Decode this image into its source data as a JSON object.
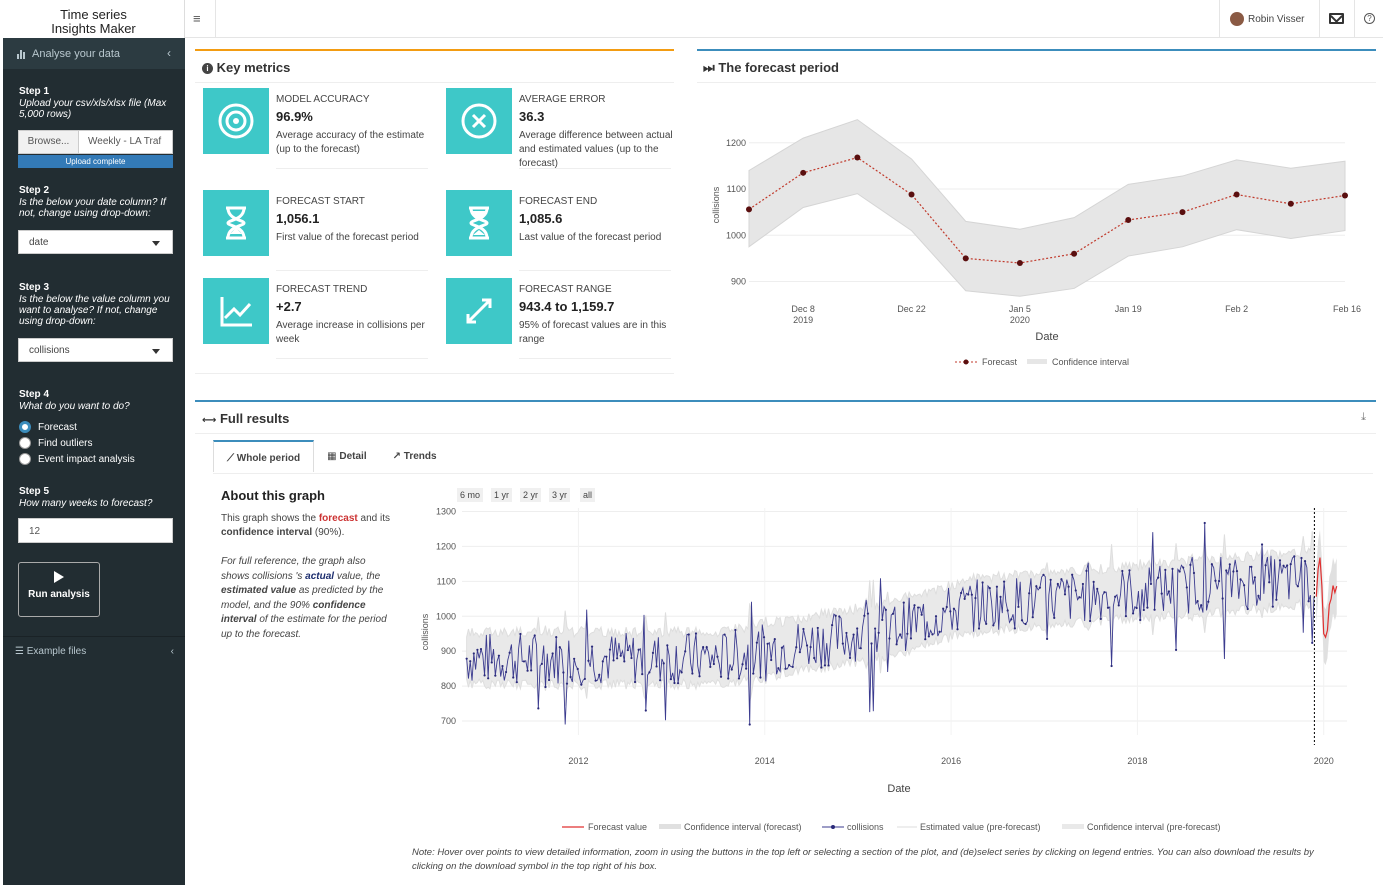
{
  "app": {
    "title_line1": "Time series",
    "title_line2": "Insights Maker"
  },
  "sidebar": {
    "menu_label": "Analyse your data",
    "step1": {
      "title": "Step 1",
      "text": "Upload your csv/xls/xlsx file (Max 5,000 rows)",
      "browse": "Browse...",
      "filename": "Weekly - LA Traf",
      "progress": "Upload complete"
    },
    "step2": {
      "title": "Step 2",
      "text": "Is the below your date column? If not, change using drop-down:",
      "value": "date"
    },
    "step3": {
      "title": "Step 3",
      "text": "Is the below the value column you want to analyse? If not, change using drop-down:",
      "value": "collisions"
    },
    "step4": {
      "title": "Step 4",
      "text": "What do you want to do?",
      "options": [
        "Forecast",
        "Find outliers",
        "Event impact analysis"
      ],
      "selected": "Forecast"
    },
    "step5": {
      "title": "Step 5",
      "text": "How many weeks to forecast?",
      "value": "12"
    },
    "run_label": "Run analysis",
    "examples_label": "Example files"
  },
  "header": {
    "user": "Robin Visser"
  },
  "key_metrics": {
    "title": "Key metrics",
    "items": [
      {
        "label": "MODEL ACCURACY",
        "value": "96.9%",
        "desc": "Average accuracy of the estimate (up to the forecast)",
        "icon": "target-icon"
      },
      {
        "label": "AVERAGE ERROR",
        "value": "36.3",
        "desc": "Average difference between actual and estimated values (up to the forecast)",
        "icon": "x-circle-icon"
      },
      {
        "label": "FORECAST START",
        "value": "1,056.1",
        "desc": "First value of the forecast period",
        "icon": "hourglass-start-icon"
      },
      {
        "label": "FORECAST END",
        "value": "1,085.6",
        "desc": "Last value of the forecast period",
        "icon": "hourglass-end-icon"
      },
      {
        "label": "FORECAST TREND",
        "value": "+2.7",
        "desc": "Average increase in collisions per week",
        "icon": "trend-chart-icon"
      },
      {
        "label": "FORECAST RANGE",
        "value": "943.4 to 1,159.7",
        "desc": "95% of forecast values are in this range",
        "icon": "expand-arrows-icon"
      }
    ]
  },
  "forecast_box": {
    "title": "The forecast period",
    "ylabel": "collisions",
    "xlabel": "Date",
    "x_ticks": [
      [
        "Dec 8",
        "2019"
      ],
      [
        "Dec 22",
        ""
      ],
      [
        "Jan 5",
        "2020"
      ],
      [
        "Jan 19",
        ""
      ],
      [
        "Feb 2",
        ""
      ],
      [
        "Feb 16",
        ""
      ]
    ],
    "y_ticks": [
      "900",
      "1000",
      "1100",
      "1200"
    ],
    "legend": [
      "Forecast",
      "Confidence interval"
    ]
  },
  "full_results": {
    "title": "Full results",
    "tabs": [
      "Whole period",
      "Detail",
      "Trends"
    ],
    "about_title": "About this graph",
    "about_p1_a": "This graph shows the ",
    "about_p1_b": "forecast",
    "about_p1_c": " and its ",
    "about_p1_d": "confidence interval",
    "about_p1_e": " (90%).",
    "about_p2_a": "For full reference, the graph also shows collisions 's ",
    "about_p2_b": "actual",
    "about_p2_c": " value, the ",
    "about_p2_d": "estimated value",
    "about_p2_e": " as predicted by the model, and the 90% ",
    "about_p2_f": "confidence interval",
    "about_p2_g": " of the estimate for the period up to the forecast.",
    "range_buttons": [
      "6 mo",
      "1 yr",
      "2 yr",
      "3 yr",
      "all"
    ],
    "ylabel": "collisions",
    "xlabel": "Date",
    "y_ticks": [
      "700",
      "800",
      "900",
      "1000",
      "1100",
      "1200",
      "1300"
    ],
    "x_ticks": [
      "2012",
      "2014",
      "2016",
      "2018",
      "2020"
    ],
    "legend": [
      "Forecast value",
      "Confidence interval (forecast)",
      "collisions",
      "Estimated value (pre-forecast)",
      "Confidence interval (pre-forecast)"
    ],
    "note": "Note: Hover over points to view detailed information, zoom in using the buttons in the top left or selecting a section of the plot, and (de)select series by clicking on legend entries. You can also download the results by clicking on the download symbol in the top right of his box."
  },
  "colors": {
    "teal": "#3ec8c8",
    "forecast_red": "#c0392b",
    "series_blue": "#3b3b8f",
    "sidebar_bg": "#222d32",
    "accent": "#3c8dbc",
    "metrics_border": "#f39c12"
  },
  "chart_data": [
    {
      "type": "line",
      "title": "The forecast period",
      "xlabel": "Date",
      "ylabel": "collisions",
      "x": [
        "2019-12-01",
        "2019-12-08",
        "2019-12-15",
        "2019-12-22",
        "2019-12-29",
        "2020-01-05",
        "2020-01-12",
        "2020-01-19",
        "2020-01-26",
        "2020-02-02",
        "2020-02-09",
        "2020-02-16"
      ],
      "series": [
        {
          "name": "Forecast",
          "values": [
            1056,
            1135,
            1168,
            1088,
            950,
            940,
            960,
            1033,
            1050,
            1088,
            1068,
            1086
          ]
        },
        {
          "name": "Confidence interval",
          "lower": [
            975,
            1060,
            1090,
            1010,
            880,
            868,
            885,
            955,
            975,
            1012,
            993,
            1010
          ],
          "upper": [
            1140,
            1210,
            1250,
            1165,
            1030,
            1013,
            1038,
            1110,
            1128,
            1163,
            1145,
            1160
          ]
        }
      ],
      "ylim": [
        860,
        1260
      ],
      "legend": "bottom"
    },
    {
      "type": "line",
      "title": "Full results",
      "xlabel": "Date",
      "ylabel": "collisions",
      "x_range": [
        "2010-09",
        "2020-03"
      ],
      "ylim": [
        660,
        1310
      ],
      "series": [
        {
          "name": "collisions",
          "start": "2010.8",
          "step_years": 0.01923,
          "count": 490,
          "segments": [
            [
              2010.8,
              880
            ],
            [
              2013.5,
              880
            ],
            [
              2015.3,
              960
            ],
            [
              2016.2,
              1030
            ],
            [
              2018.0,
              1070
            ],
            [
              2019.9,
              1110
            ]
          ],
          "noise": 95
        },
        {
          "name": "Forecast value",
          "x": [
            2019.92,
            2019.94,
            2019.96,
            2019.98,
            2020.0,
            2020.02,
            2020.04,
            2020.06,
            2020.08,
            2020.1,
            2020.12,
            2020.14
          ],
          "values": [
            1056,
            1135,
            1168,
            1088,
            950,
            940,
            960,
            1033,
            1050,
            1088,
            1068,
            1086
          ]
        }
      ],
      "legend": "bottom"
    }
  ]
}
